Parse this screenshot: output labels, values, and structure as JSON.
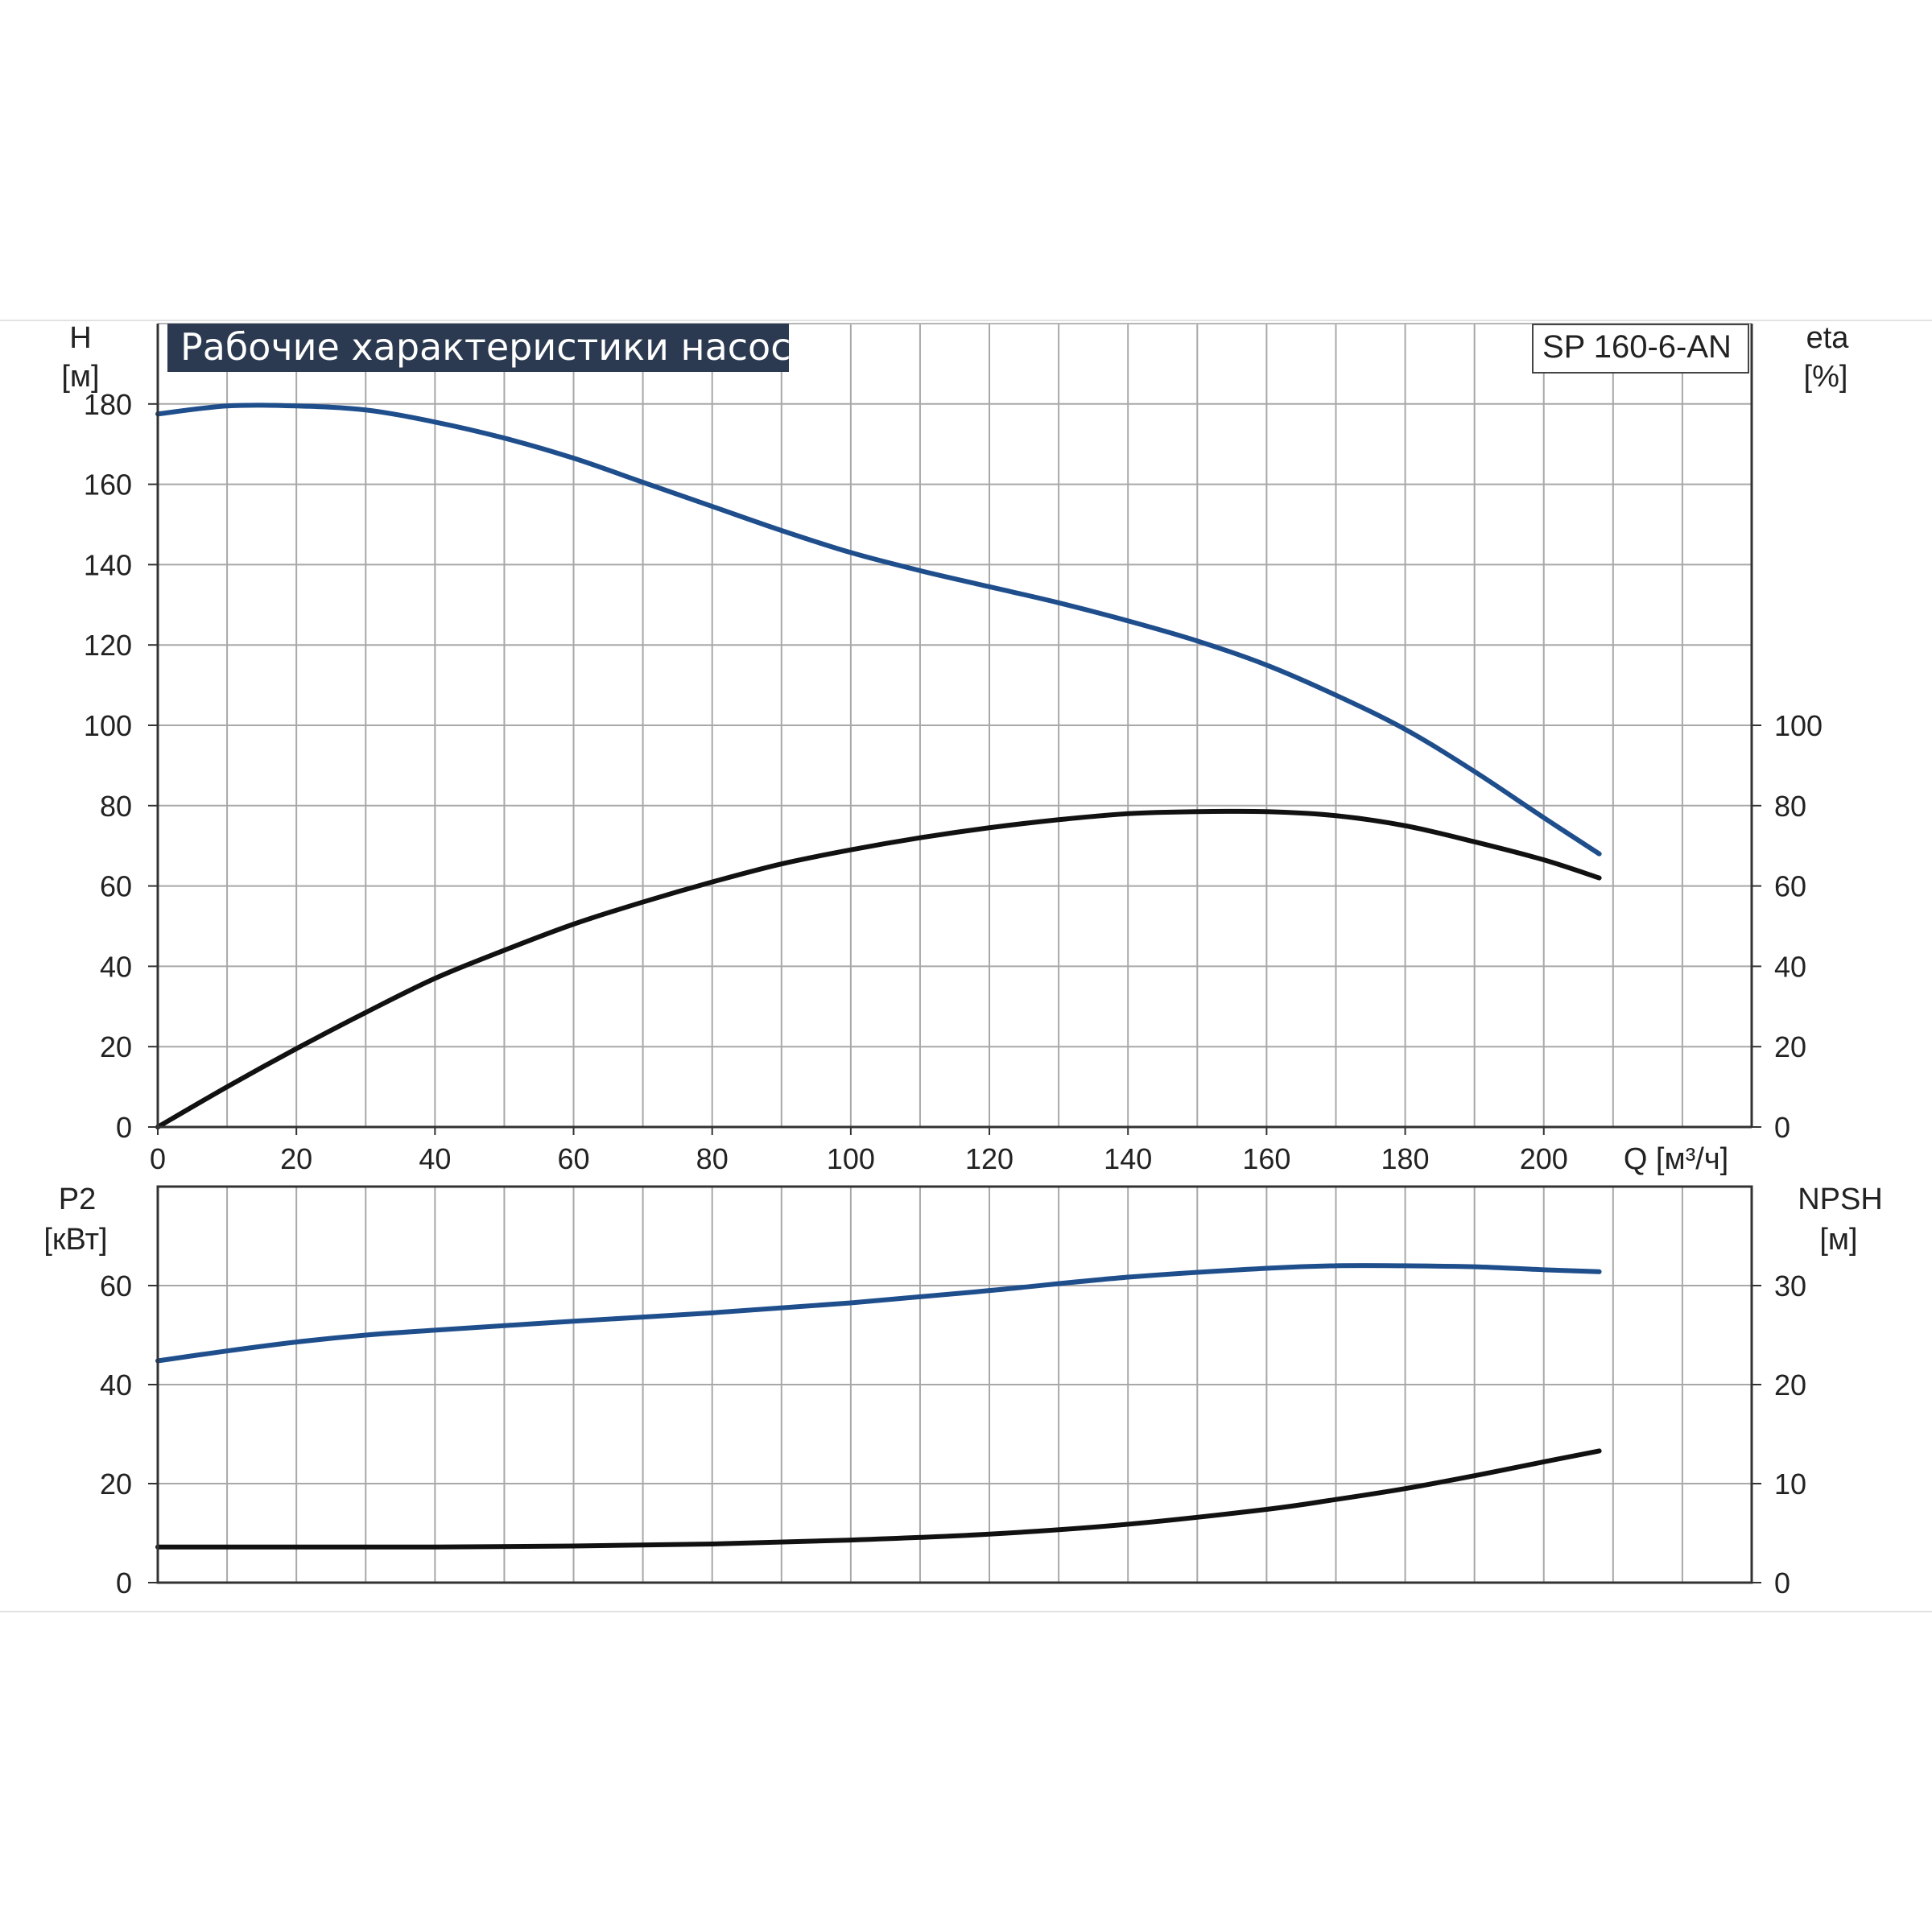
{
  "title": "Рабочие характеристики насоса",
  "model": "SP 160-6-AN",
  "colors": {
    "blue": "#1f4e8c",
    "black": "#111111",
    "grid": "#a8a8a8",
    "title_bg": "#2b3a50"
  },
  "chart_data": [
    {
      "type": "line",
      "panel": "top",
      "xlabel": "Q [м³/ч]",
      "x_ticks": [
        "0",
        "20",
        "40",
        "60",
        "80",
        "100",
        "120",
        "140",
        "160",
        "180",
        "200"
      ],
      "xlim": [
        0,
        230
      ],
      "y_left": {
        "label_line1": "H",
        "label_line2": "[м]",
        "ticks": [
          "0",
          "20",
          "40",
          "60",
          "80",
          "100",
          "120",
          "140",
          "160",
          "180"
        ],
        "ylim": [
          0,
          200
        ]
      },
      "y_right": {
        "label_line1": "eta",
        "label_line2": "[%]",
        "ticks": [
          "0",
          "20",
          "40",
          "60",
          "80",
          "100"
        ],
        "ylim": [
          0,
          200
        ]
      },
      "grid": true,
      "series": [
        {
          "name": "H",
          "axis": "left",
          "color": "#1f4e8c",
          "x": [
            0,
            10,
            20,
            30,
            40,
            50,
            60,
            70,
            80,
            90,
            100,
            110,
            120,
            130,
            140,
            150,
            160,
            170,
            180,
            190,
            200,
            208
          ],
          "y": [
            177.5,
            179.5,
            179.5,
            178.5,
            175.5,
            171.5,
            166.5,
            160.5,
            154.5,
            148.5,
            143,
            138.5,
            134.5,
            130.5,
            126,
            121,
            115,
            107.5,
            99,
            88.5,
            77,
            68
          ]
        },
        {
          "name": "eta",
          "axis": "right",
          "color": "#111111",
          "x": [
            0,
            10,
            20,
            30,
            40,
            50,
            60,
            70,
            80,
            90,
            100,
            110,
            120,
            130,
            140,
            150,
            160,
            170,
            180,
            190,
            200,
            208
          ],
          "y": [
            0,
            10,
            19.5,
            28.5,
            37,
            44,
            50.5,
            56,
            61,
            65.5,
            69,
            72,
            74.5,
            76.5,
            78,
            78.5,
            78.5,
            77.5,
            75,
            71,
            66.5,
            62
          ]
        }
      ]
    },
    {
      "type": "line",
      "panel": "bottom",
      "xlim": [
        0,
        230
      ],
      "y_left": {
        "label_line1": "P2",
        "label_line2": "[кВт]",
        "ticks": [
          "0",
          "20",
          "40",
          "60"
        ],
        "ylim": [
          0,
          80
        ]
      },
      "y_right": {
        "label_line1": "NPSH",
        "label_line2": "[м]",
        "ticks": [
          "0",
          "10",
          "20",
          "30"
        ],
        "ylim": [
          0,
          40
        ]
      },
      "grid": true,
      "series": [
        {
          "name": "P2",
          "axis": "left",
          "color": "#1f4e8c",
          "x": [
            0,
            10,
            20,
            30,
            40,
            60,
            80,
            100,
            120,
            140,
            160,
            170,
            180,
            190,
            200,
            208
          ],
          "y": [
            44.8,
            46.8,
            48.6,
            50,
            51,
            52.8,
            54.5,
            56.5,
            59,
            61.7,
            63.5,
            64,
            64,
            63.8,
            63.2,
            62.8
          ]
        },
        {
          "name": "NPSH",
          "axis": "right",
          "color": "#111111",
          "x": [
            0,
            15,
            30,
            40,
            60,
            80,
            100,
            120,
            140,
            160,
            170,
            180,
            190,
            200,
            208
          ],
          "y": [
            3.6,
            3.6,
            3.6,
            3.6,
            3.7,
            3.9,
            4.3,
            4.9,
            5.9,
            7.4,
            8.4,
            9.5,
            10.8,
            12.2,
            13.3
          ]
        }
      ]
    }
  ]
}
